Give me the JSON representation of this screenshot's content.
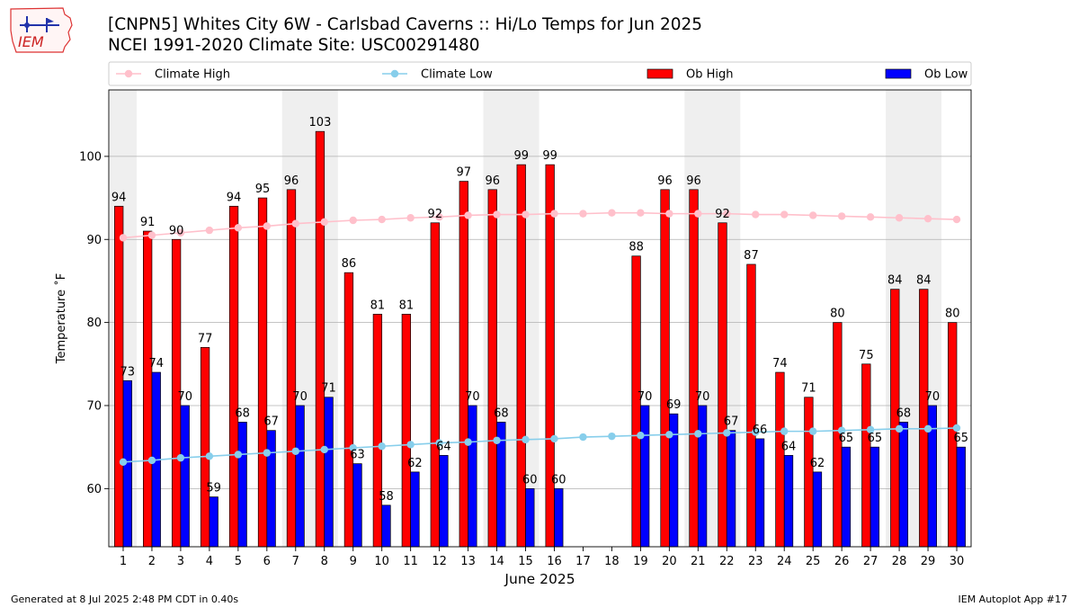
{
  "header": {
    "title_line1": "[CNPN5] Whites City 6W - Carlsbad Caverns :: Hi/Lo Temps for Jun 2025",
    "title_line2": "NCEI 1991-2020 Climate Site: USC00291480",
    "logo_text": "IEM"
  },
  "footer": {
    "generated": "Generated at 8 Jul 2025 2:48 PM CDT in 0.40s",
    "app": "IEM Autoplot App #17"
  },
  "colors": {
    "ob_high": "#ff0000",
    "ob_low": "#0000ff",
    "climate_high": "#ffc0cb",
    "climate_low": "#87ceeb",
    "weekend_band": "#efefef",
    "grid": "#b0b0b0"
  },
  "chart_data": {
    "type": "bar",
    "xlabel": "June 2025",
    "ylabel": "Temperature ˚F",
    "ylim": [
      53,
      108
    ],
    "yticks": [
      60,
      70,
      80,
      90,
      100
    ],
    "grid": "horizontal",
    "legend_placement": "top",
    "categories": [
      "1",
      "2",
      "3",
      "4",
      "5",
      "6",
      "7",
      "8",
      "9",
      "10",
      "11",
      "12",
      "13",
      "14",
      "15",
      "16",
      "17",
      "18",
      "19",
      "20",
      "21",
      "22",
      "23",
      "24",
      "25",
      "26",
      "27",
      "28",
      "29",
      "30"
    ],
    "weekend_bands": [
      [
        1,
        1
      ],
      [
        7,
        8
      ],
      [
        14,
        15
      ],
      [
        21,
        22
      ],
      [
        28,
        29
      ]
    ],
    "series": [
      {
        "name": "Climate High",
        "type": "line",
        "values": [
          90.2,
          90.5,
          90.8,
          91.1,
          91.4,
          91.6,
          91.9,
          92.1,
          92.3,
          92.4,
          92.6,
          92.7,
          92.9,
          93.0,
          93.0,
          93.1,
          93.1,
          93.2,
          93.2,
          93.1,
          93.1,
          93.1,
          93.0,
          93.0,
          92.9,
          92.8,
          92.7,
          92.6,
          92.5,
          92.4
        ]
      },
      {
        "name": "Climate Low",
        "type": "line",
        "values": [
          63.2,
          63.4,
          63.7,
          63.9,
          64.1,
          64.3,
          64.5,
          64.7,
          64.9,
          65.1,
          65.3,
          65.5,
          65.6,
          65.8,
          65.9,
          66.0,
          66.2,
          66.3,
          66.4,
          66.5,
          66.6,
          66.7,
          66.8,
          66.9,
          66.9,
          67.0,
          67.1,
          67.2,
          67.2,
          67.3
        ]
      },
      {
        "name": "Ob High",
        "type": "bar",
        "values": [
          94,
          91,
          90,
          77,
          94,
          95,
          96,
          103,
          86,
          81,
          81,
          92,
          97,
          96,
          99,
          99,
          null,
          null,
          88,
          96,
          96,
          92,
          87,
          74,
          71,
          80,
          75,
          84,
          84,
          80
        ]
      },
      {
        "name": "Ob Low",
        "type": "bar",
        "values": [
          73,
          74,
          70,
          59,
          68,
          67,
          70,
          71,
          63,
          58,
          62,
          64,
          70,
          68,
          60,
          60,
          null,
          null,
          70,
          69,
          70,
          67,
          66,
          64,
          62,
          65,
          65,
          68,
          70,
          65
        ]
      }
    ]
  }
}
